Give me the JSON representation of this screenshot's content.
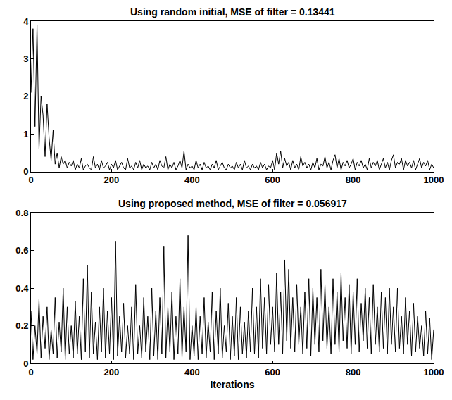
{
  "chart_data": [
    {
      "type": "line",
      "title": "Using random initial, MSE of filter = 0.13441",
      "color": "#000000",
      "grid": false,
      "xlim": [
        0,
        1000
      ],
      "xticks": [
        0,
        200,
        400,
        600,
        800,
        1000
      ],
      "ylim": [
        0,
        4
      ],
      "yticks": [
        0,
        1,
        2,
        3,
        4
      ],
      "x": [
        0,
        5,
        10,
        15,
        20,
        25,
        30,
        35,
        40,
        45,
        50,
        55,
        60,
        65,
        70,
        75,
        80,
        85,
        90,
        95,
        100,
        105,
        110,
        115,
        120,
        125,
        130,
        135,
        140,
        145,
        150,
        155,
        160,
        165,
        170,
        175,
        180,
        185,
        190,
        195,
        200,
        205,
        210,
        215,
        220,
        225,
        230,
        235,
        240,
        245,
        250,
        255,
        260,
        265,
        270,
        275,
        280,
        285,
        290,
        295,
        300,
        305,
        310,
        315,
        320,
        325,
        330,
        335,
        340,
        345,
        350,
        355,
        360,
        365,
        370,
        375,
        380,
        385,
        390,
        395,
        400,
        405,
        410,
        415,
        420,
        425,
        430,
        435,
        440,
        445,
        450,
        455,
        460,
        465,
        470,
        475,
        480,
        485,
        490,
        495,
        500,
        505,
        510,
        515,
        520,
        525,
        530,
        535,
        540,
        545,
        550,
        555,
        560,
        565,
        570,
        575,
        580,
        585,
        590,
        595,
        600,
        605,
        610,
        615,
        620,
        625,
        630,
        635,
        640,
        645,
        650,
        655,
        660,
        665,
        670,
        675,
        680,
        685,
        690,
        695,
        700,
        705,
        710,
        715,
        720,
        725,
        730,
        735,
        740,
        745,
        750,
        755,
        760,
        765,
        770,
        775,
        780,
        785,
        790,
        795,
        800,
        805,
        810,
        815,
        820,
        825,
        830,
        835,
        840,
        845,
        850,
        855,
        860,
        865,
        870,
        875,
        880,
        885,
        890,
        895,
        900,
        905,
        910,
        915,
        920,
        925,
        930,
        935,
        940,
        945,
        950,
        955,
        960,
        965,
        970,
        975,
        980,
        985,
        990,
        995,
        1000
      ],
      "values": [
        2.1,
        3.8,
        1.2,
        3.9,
        0.6,
        2.0,
        1.5,
        0.4,
        1.8,
        0.9,
        0.3,
        1.1,
        0.2,
        0.5,
        0.1,
        0.4,
        0.2,
        0.3,
        0.1,
        0.25,
        0.15,
        0.3,
        0.05,
        0.2,
        0.1,
        0.35,
        0.05,
        0.15,
        0.2,
        0.1,
        0.05,
        0.4,
        0.1,
        0.2,
        0.05,
        0.3,
        0.1,
        0.15,
        0.25,
        0.05,
        0.2,
        0.1,
        0.3,
        0.05,
        0.15,
        0.25,
        0.1,
        0.05,
        0.35,
        0.1,
        0.15,
        0.05,
        0.25,
        0.1,
        0.3,
        0.05,
        0.2,
        0.1,
        0.15,
        0.05,
        0.25,
        0.1,
        0.2,
        0.05,
        0.3,
        0.15,
        0.1,
        0.4,
        0.05,
        0.2,
        0.1,
        0.25,
        0.05,
        0.15,
        0.3,
        0.1,
        0.55,
        0.05,
        0.2,
        0.1,
        0.15,
        0.05,
        0.3,
        0.1,
        0.2,
        0.05,
        0.25,
        0.1,
        0.15,
        0.05,
        0.2,
        0.1,
        0.3,
        0.05,
        0.15,
        0.25,
        0.1,
        0.05,
        0.2,
        0.1,
        0.15,
        0.05,
        0.25,
        0.1,
        0.2,
        0.05,
        0.3,
        0.1,
        0.15,
        0.05,
        0.2,
        0.1,
        0.15,
        0.05,
        0.25,
        0.1,
        0.2,
        0.05,
        0.15,
        0.1,
        0.3,
        0.05,
        0.5,
        0.2,
        0.55,
        0.1,
        0.35,
        0.15,
        0.25,
        0.05,
        0.3,
        0.1,
        0.2,
        0.05,
        0.4,
        0.15,
        0.25,
        0.1,
        0.2,
        0.05,
        0.25,
        0.1,
        0.35,
        0.05,
        0.2,
        0.15,
        0.4,
        0.1,
        0.25,
        0.05,
        0.3,
        0.45,
        0.1,
        0.35,
        0.05,
        0.25,
        0.15,
        0.3,
        0.1,
        0.2,
        0.35,
        0.05,
        0.25,
        0.15,
        0.3,
        0.1,
        0.2,
        0.05,
        0.35,
        0.1,
        0.25,
        0.15,
        0.3,
        0.05,
        0.2,
        0.35,
        0.1,
        0.25,
        0.05,
        0.3,
        0.45,
        0.1,
        0.25,
        0.2,
        0.35,
        0.05,
        0.3,
        0.15,
        0.25,
        0.1,
        0.3,
        0.05,
        0.2,
        0.35,
        0.1,
        0.25,
        0.15,
        0.3,
        0.05,
        0.2,
        0.1
      ]
    },
    {
      "type": "line",
      "title": "Using proposed method, MSE of filter = 0.056917",
      "xlabel": "Iterations",
      "color": "#000000",
      "grid": false,
      "xlim": [
        0,
        1000
      ],
      "xticks": [
        0,
        200,
        400,
        600,
        800,
        1000
      ],
      "ylim": [
        0,
        0.8
      ],
      "yticks": [
        0,
        0.2,
        0.4,
        0.6,
        0.8
      ],
      "x": [
        0,
        5,
        10,
        15,
        20,
        25,
        30,
        35,
        40,
        45,
        50,
        55,
        60,
        65,
        70,
        75,
        80,
        85,
        90,
        95,
        100,
        105,
        110,
        115,
        120,
        125,
        130,
        135,
        140,
        145,
        150,
        155,
        160,
        165,
        170,
        175,
        180,
        185,
        190,
        195,
        200,
        205,
        210,
        215,
        220,
        225,
        230,
        235,
        240,
        245,
        250,
        255,
        260,
        265,
        270,
        275,
        280,
        285,
        290,
        295,
        300,
        305,
        310,
        315,
        320,
        325,
        330,
        335,
        340,
        345,
        350,
        355,
        360,
        365,
        370,
        375,
        380,
        385,
        390,
        395,
        400,
        405,
        410,
        415,
        420,
        425,
        430,
        435,
        440,
        445,
        450,
        455,
        460,
        465,
        470,
        475,
        480,
        485,
        490,
        495,
        500,
        505,
        510,
        515,
        520,
        525,
        530,
        535,
        540,
        545,
        550,
        555,
        560,
        565,
        570,
        575,
        580,
        585,
        590,
        595,
        600,
        605,
        610,
        615,
        620,
        625,
        630,
        635,
        640,
        645,
        650,
        655,
        660,
        665,
        670,
        675,
        680,
        685,
        690,
        695,
        700,
        705,
        710,
        715,
        720,
        725,
        730,
        735,
        740,
        745,
        750,
        755,
        760,
        765,
        770,
        775,
        780,
        785,
        790,
        795,
        800,
        805,
        810,
        815,
        820,
        825,
        830,
        835,
        840,
        845,
        850,
        855,
        860,
        865,
        870,
        875,
        880,
        885,
        890,
        895,
        900,
        905,
        910,
        915,
        920,
        925,
        930,
        935,
        940,
        945,
        950,
        955,
        960,
        965,
        970,
        975,
        980,
        985,
        990,
        995,
        1000
      ],
      "values": [
        0.28,
        0.02,
        0.2,
        0.05,
        0.34,
        0.03,
        0.25,
        0.08,
        0.3,
        0.02,
        0.18,
        0.05,
        0.35,
        0.03,
        0.22,
        0.06,
        0.4,
        0.02,
        0.3,
        0.05,
        0.2,
        0.03,
        0.33,
        0.05,
        0.25,
        0.02,
        0.45,
        0.06,
        0.52,
        0.03,
        0.38,
        0.05,
        0.22,
        0.02,
        0.3,
        0.06,
        0.4,
        0.03,
        0.28,
        0.05,
        0.35,
        0.02,
        0.65,
        0.04,
        0.25,
        0.06,
        0.32,
        0.03,
        0.2,
        0.05,
        0.3,
        0.02,
        0.42,
        0.05,
        0.2,
        0.03,
        0.35,
        0.06,
        0.25,
        0.02,
        0.4,
        0.04,
        0.28,
        0.02,
        0.35,
        0.05,
        0.62,
        0.03,
        0.3,
        0.06,
        0.38,
        0.02,
        0.25,
        0.05,
        0.45,
        0.03,
        0.3,
        0.06,
        0.68,
        0.02,
        0.2,
        0.04,
        0.3,
        0.02,
        0.25,
        0.05,
        0.35,
        0.03,
        0.22,
        0.06,
        0.38,
        0.02,
        0.28,
        0.05,
        0.4,
        0.03,
        0.2,
        0.06,
        0.32,
        0.02,
        0.25,
        0.04,
        0.35,
        0.02,
        0.3,
        0.05,
        0.22,
        0.03,
        0.28,
        0.06,
        0.4,
        0.05,
        0.3,
        0.03,
        0.45,
        0.08,
        0.35,
        0.05,
        0.42,
        0.1,
        0.3,
        0.06,
        0.48,
        0.1,
        0.38,
        0.05,
        0.55,
        0.12,
        0.5,
        0.08,
        0.35,
        0.06,
        0.42,
        0.1,
        0.3,
        0.05,
        0.38,
        0.08,
        0.45,
        0.04,
        0.4,
        0.1,
        0.35,
        0.06,
        0.5,
        0.12,
        0.42,
        0.08,
        0.3,
        0.05,
        0.45,
        0.1,
        0.38,
        0.06,
        0.48,
        0.12,
        0.35,
        0.08,
        0.42,
        0.05,
        0.38,
        0.1,
        0.45,
        0.06,
        0.32,
        0.12,
        0.4,
        0.08,
        0.35,
        0.05,
        0.42,
        0.1,
        0.3,
        0.06,
        0.38,
        0.08,
        0.35,
        0.05,
        0.4,
        0.1,
        0.3,
        0.06,
        0.4,
        0.08,
        0.25,
        0.05,
        0.35,
        0.1,
        0.28,
        0.04,
        0.32,
        0.06,
        0.25,
        0.08,
        0.2,
        0.04,
        0.28,
        0.05,
        0.24,
        0.02,
        0.18
      ]
    }
  ]
}
